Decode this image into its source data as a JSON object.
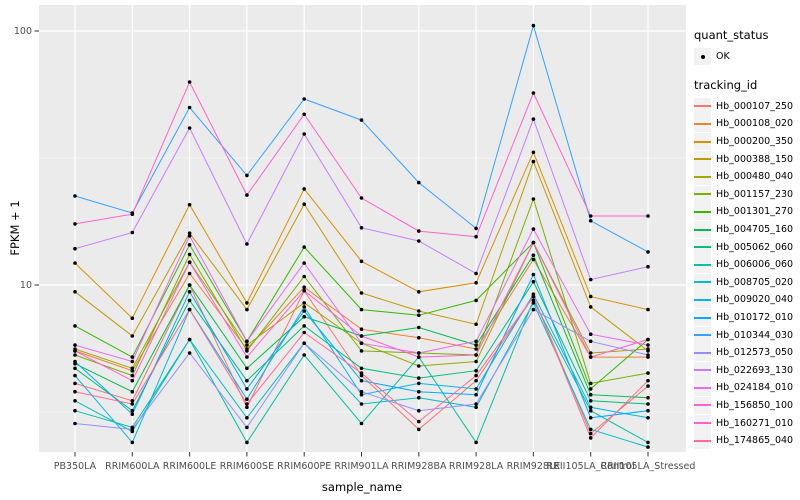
{
  "figure": {
    "xlabel": "sample_name",
    "ylabel": "FPKM + 1",
    "legend": {
      "quant_status_title": "quant_status",
      "quant_status_ok_label": "OK",
      "tracking_id_title": "tracking_id"
    },
    "colors": {
      "panel_background": "#EBEBEB",
      "gridline": "#FFFFFF",
      "tick_text": "#4D4D4D",
      "point": "#000000",
      "legend_key_background": "#F2F2F2"
    }
  },
  "chart_data": {
    "type": "line",
    "title": "",
    "xlabel": "sample_name",
    "ylabel": "FPKM + 1",
    "yscale": "log10",
    "yticks": [
      10,
      100
    ],
    "minor_yticks": [
      3.162,
      31.623
    ],
    "ylim": [
      2.2,
      119
    ],
    "grid": true,
    "legend_position": "right",
    "point_marker": "black dot (quant_status = OK) at every vertex",
    "categories": [
      "PB350LA",
      "RRIM600LA",
      "RRIM600LE",
      "RRIM600SE",
      "RRIM600PE",
      "RRIM901LA",
      "RRIM928BA",
      "RRIM928LA",
      "RRIM928LE",
      "RRII105LA_Control",
      "RRII105LA_Stressed"
    ],
    "series": [
      {
        "name": "Hb_000107_250",
        "color": "#F8766D",
        "values": [
          4.1,
          3.5,
          10.0,
          3.3,
          9.5,
          4.4,
          2.7,
          4.2,
          9.0,
          2.6,
          4.0
        ]
      },
      {
        "name": "Hb_000108_020",
        "color": "#EA8331",
        "values": [
          5.5,
          4.6,
          11.1,
          5.6,
          9.8,
          6.7,
          6.2,
          5.6,
          12.6,
          5.2,
          5.2
        ]
      },
      {
        "name": "Hb_000200_350",
        "color": "#D89000",
        "values": [
          12.2,
          7.4,
          20.7,
          8.5,
          23.9,
          12.4,
          9.4,
          10.2,
          33.3,
          9.0,
          8.0
        ]
      },
      {
        "name": "Hb_000388_150",
        "color": "#C09B00",
        "values": [
          9.4,
          6.3,
          16.0,
          8.0,
          20.8,
          9.3,
          7.9,
          7.0,
          30.6,
          8.2,
          5.5
        ]
      },
      {
        "name": "Hb_000480_040",
        "color": "#A3A500",
        "values": [
          5.6,
          4.7,
          12.3,
          5.8,
          8.5,
          5.9,
          4.8,
          5.0,
          14.7,
          5.4,
          5.6
        ]
      },
      {
        "name": "Hb_001157_230",
        "color": "#7CAE00",
        "values": [
          5.3,
          4.4,
          13.2,
          5.5,
          10.8,
          5.5,
          5.4,
          5.3,
          21.8,
          4.1,
          4.5
        ]
      },
      {
        "name": "Hb_001301_270",
        "color": "#39B600",
        "values": [
          6.9,
          5.2,
          14.4,
          6.0,
          14.1,
          8.0,
          7.6,
          8.7,
          14.7,
          3.9,
          6.1
        ]
      },
      {
        "name": "Hb_004705_160",
        "color": "#00BB4E",
        "values": [
          4.9,
          3.8,
          10.0,
          4.7,
          7.5,
          6.3,
          6.8,
          5.8,
          13.1,
          3.7,
          3.6
        ]
      },
      {
        "name": "Hb_005062_060",
        "color": "#00BF7D",
        "values": [
          4.7,
          3.2,
          8.7,
          4.2,
          6.9,
          4.7,
          4.3,
          4.6,
          10.3,
          3.5,
          3.4
        ]
      },
      {
        "name": "Hb_006006_060",
        "color": "#00C1A3",
        "values": [
          3.2,
          2.75,
          6.1,
          2.4,
          5.3,
          2.85,
          5.2,
          2.4,
          8.7,
          3.2,
          2.4
        ]
      },
      {
        "name": "Hb_008705_020",
        "color": "#00BFC4",
        "values": [
          3.5,
          2.65,
          6.1,
          3.0,
          5.9,
          3.4,
          3.6,
          3.3,
          8.5,
          2.7,
          2.3
        ]
      },
      {
        "name": "Hb_009020_040",
        "color": "#00B8E7",
        "values": [
          4.4,
          2.4,
          8.0,
          3.55,
          8.2,
          3.7,
          4.1,
          3.9,
          9.2,
          3.3,
          3.0
        ]
      },
      {
        "name": "Hb_010172_010",
        "color": "#00ACFC",
        "values": [
          5.0,
          3.1,
          9.4,
          3.9,
          7.9,
          4.2,
          3.8,
          3.7,
          11.0,
          3.0,
          3.2
        ]
      },
      {
        "name": "Hb_010344_030",
        "color": "#35A2FF",
        "values": [
          22.4,
          19.2,
          50.0,
          27.0,
          54.0,
          44.6,
          25.3,
          16.7,
          105.0,
          17.9,
          13.5
        ]
      },
      {
        "name": "Hb_012573_050",
        "color": "#9590FF",
        "values": [
          2.85,
          2.7,
          5.4,
          2.75,
          5.9,
          3.8,
          3.2,
          3.4,
          8.0,
          6.0,
          5.3
        ]
      },
      {
        "name": "Hb_022693_130",
        "color": "#C77CFF",
        "values": [
          13.9,
          16.1,
          41.5,
          14.5,
          39.3,
          16.8,
          14.9,
          11.1,
          45.0,
          10.5,
          11.8
        ]
      },
      {
        "name": "Hb_024184_010",
        "color": "#E76BF3",
        "values": [
          5.8,
          5.0,
          15.6,
          6.0,
          12.2,
          5.9,
          5.4,
          6.0,
          16.6,
          6.4,
          5.8
        ]
      },
      {
        "name": "Hb_156850_100",
        "color": "#FA62DB",
        "values": [
          5.5,
          4.2,
          12.3,
          5.2,
          9.5,
          6.3,
          5.2,
          5.3,
          14.7,
          5.2,
          6.1
        ]
      },
      {
        "name": "Hb_160271_010",
        "color": "#FF61CC",
        "values": [
          17.4,
          19.0,
          63.0,
          22.6,
          47.0,
          22.0,
          16.3,
          15.5,
          57.0,
          18.7,
          18.7
        ]
      },
      {
        "name": "Hb_174865_040",
        "color": "#FF6A98",
        "values": [
          3.8,
          3.4,
          8.0,
          3.4,
          6.5,
          4.5,
          2.9,
          4.4,
          9.0,
          2.5,
          4.2
        ]
      }
    ]
  }
}
